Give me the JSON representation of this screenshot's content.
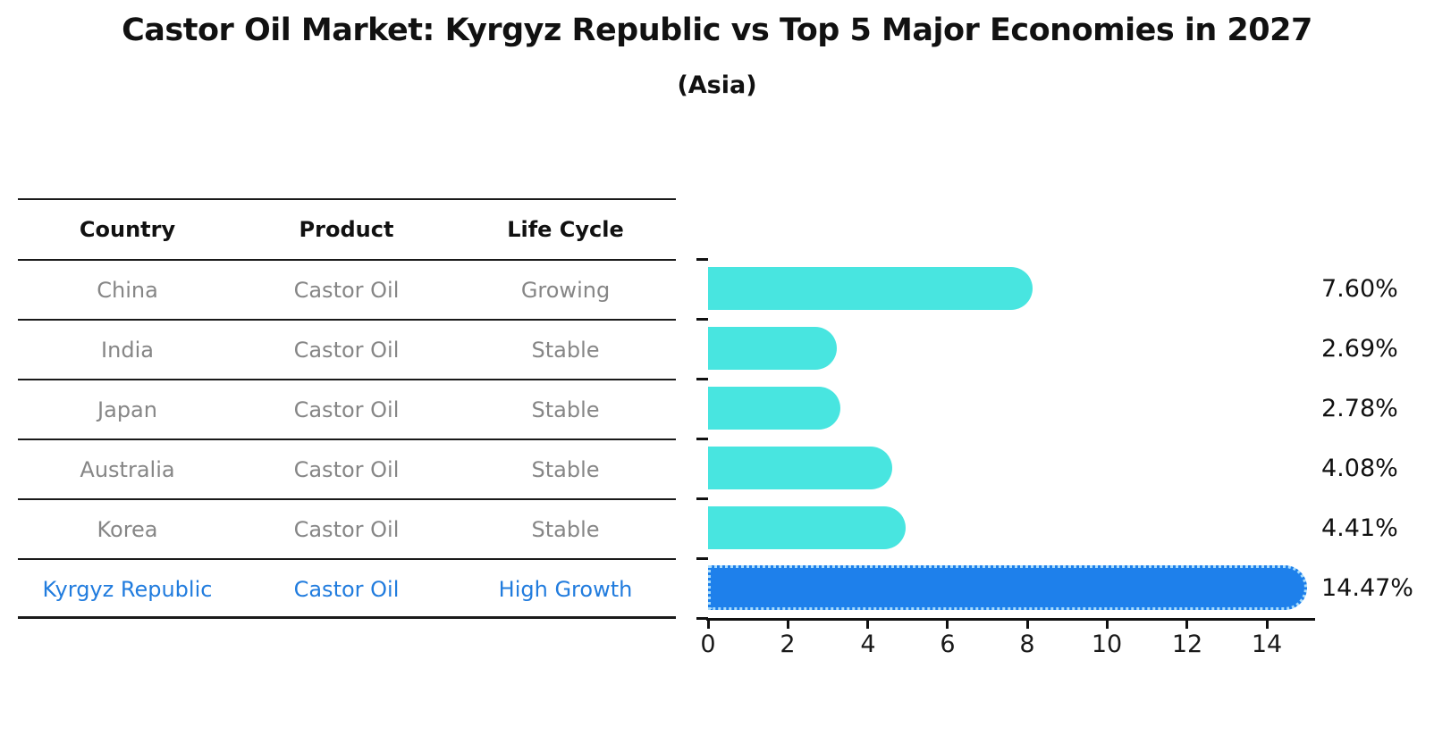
{
  "title": "Castor Oil Market: Kyrgyz Republic vs Top 5 Major Economies in 2027",
  "subtitle": "(Asia)",
  "table": {
    "headers": [
      "Country",
      "Product",
      "Life Cycle"
    ],
    "rows": [
      {
        "country": "China",
        "product": "Castor Oil",
        "life_cycle": "Growing"
      },
      {
        "country": "India",
        "product": "Castor Oil",
        "life_cycle": "Stable"
      },
      {
        "country": "Japan",
        "product": "Castor Oil",
        "life_cycle": "Stable"
      },
      {
        "country": "Australia",
        "product": "Castor Oil",
        "life_cycle": "Stable"
      },
      {
        "country": "Korea",
        "product": "Castor Oil",
        "life_cycle": "Stable"
      },
      {
        "country": "Kyrgyz Republic",
        "product": "Castor Oil",
        "life_cycle": "High Growth"
      }
    ]
  },
  "chart_data": {
    "type": "bar",
    "orientation": "horizontal",
    "title": "Castor Oil Market: Kyrgyz Republic vs Top 5 Major Economies in 2027",
    "subtitle": "(Asia)",
    "categories": [
      "China",
      "India",
      "Japan",
      "Australia",
      "Korea",
      "Kyrgyz Republic"
    ],
    "values": [
      7.6,
      2.69,
      2.78,
      4.08,
      4.41,
      14.47
    ],
    "value_labels": [
      "7.60%",
      "2.69%",
      "2.78%",
      "4.08%",
      "4.41%",
      "14.47%"
    ],
    "xlabel": "",
    "ylabel": "",
    "xticks": [
      0,
      2,
      4,
      6,
      8,
      10,
      12,
      14
    ],
    "xlim": [
      0,
      15.2
    ],
    "grid": false,
    "legend": false,
    "highlight_index": 5,
    "bar_color": "#48E5E0",
    "highlight_bar_color": "#1E80EB",
    "highlight_border_color": "#A8DCFC"
  },
  "colors": {
    "header_text": "#111111",
    "row_text": "#868686",
    "highlight_text": "#217CDE",
    "axis": "#111111",
    "background": "#ffffff"
  }
}
